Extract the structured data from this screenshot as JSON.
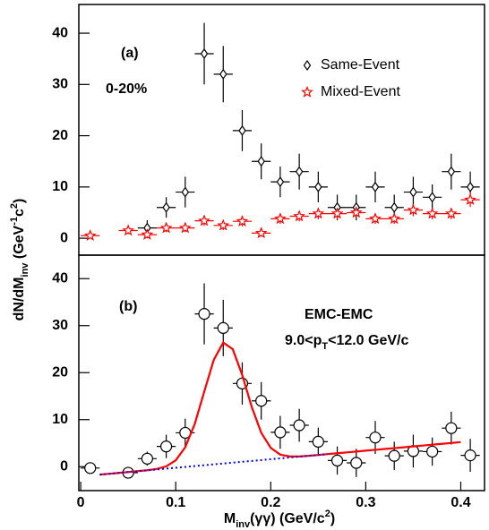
{
  "chart_data": [
    {
      "type": "scatter",
      "annotations": [
        "(a)",
        "0-20%"
      ],
      "xlim": [
        -0.002,
        0.425
      ],
      "ylim": [
        -3.3,
        45.6
      ],
      "yticks": [
        0,
        10,
        20,
        30,
        40
      ],
      "y_label": [
        "dN/dM",
        "inv",
        " (GeV",
        "-1",
        "c",
        "2",
        ")"
      ],
      "xerr": 0.01,
      "series": [
        {
          "name": "Same-Event",
          "color": "#000000",
          "marker": "diamond",
          "style": "points",
          "x": [
            0.07,
            0.09,
            0.11,
            0.13,
            0.15,
            0.17,
            0.19,
            0.21,
            0.23,
            0.25,
            0.27,
            0.29,
            0.31,
            0.33,
            0.35,
            0.37,
            0.39,
            0.41
          ],
          "values": [
            2,
            6,
            9,
            36,
            32,
            21,
            15,
            11,
            13,
            10,
            6,
            6,
            10,
            6,
            9,
            8,
            13,
            10
          ],
          "errors": [
            1.5,
            2,
            3,
            6,
            5.5,
            4,
            3.5,
            3,
            3.5,
            3,
            2.5,
            2.5,
            3,
            2.5,
            3,
            2.5,
            3.5,
            3
          ]
        },
        {
          "name": "Mixed-Event",
          "color": "#ff0000",
          "marker": "star",
          "style": "points",
          "x": [
            0.01,
            0.05,
            0.07,
            0.09,
            0.11,
            0.13,
            0.15,
            0.17,
            0.19,
            0.21,
            0.23,
            0.25,
            0.27,
            0.29,
            0.31,
            0.33,
            0.35,
            0.37,
            0.39,
            0.41
          ],
          "values": [
            0.5,
            1.5,
            0.7,
            2,
            2,
            3.4,
            2.5,
            3.3,
            1,
            3.8,
            4.3,
            4.8,
            4.8,
            5,
            3.8,
            3.8,
            5.5,
            4.8,
            4.8,
            7.5
          ],
          "errors": [
            0.5,
            0.7,
            0.7,
            0.8,
            0.8,
            1,
            0.9,
            1,
            0.7,
            1,
            1,
            1.1,
            1.1,
            1.1,
            1,
            1,
            1.2,
            1.1,
            1.1,
            1.4
          ]
        }
      ]
    },
    {
      "type": "scatter",
      "annotations": [
        "(b)",
        "EMC-EMC",
        [
          "9.0<p",
          "T",
          "<12.0 GeV/c"
        ]
      ],
      "xlim": [
        -0.002,
        0.425
      ],
      "xticks": [
        0,
        0.1,
        0.2,
        0.3,
        0.4
      ],
      "ylim": [
        -5.1,
        45
      ],
      "yticks": [
        0,
        10,
        20,
        30,
        40
      ],
      "x_label": [
        "M",
        "inv",
        "(γγ) (GeV/c",
        "2",
        ")"
      ],
      "xerr": 0.01,
      "series": [
        {
          "color": "#000000",
          "marker": "circle",
          "style": "points",
          "x": [
            0.01,
            0.05,
            0.07,
            0.09,
            0.11,
            0.13,
            0.15,
            0.17,
            0.19,
            0.21,
            0.23,
            0.25,
            0.27,
            0.29,
            0.31,
            0.33,
            0.35,
            0.37,
            0.39,
            0.41
          ],
          "values": [
            -0.3,
            -1.3,
            1.7,
            4.3,
            7.2,
            32.5,
            29.5,
            17.7,
            14,
            7.3,
            8.8,
            5.3,
            1.3,
            0.8,
            6.2,
            2.3,
            3.3,
            3.2,
            8.2,
            2.4
          ],
          "errors": [
            0.8,
            0.8,
            1.5,
            2.5,
            3,
            6.5,
            6,
            4.5,
            4,
            3.5,
            3.5,
            3,
            3,
            3,
            3.5,
            3,
            3.5,
            3,
            3.5,
            3.5
          ]
        },
        {
          "color": "#ff0000",
          "style": "solid",
          "x": [
            0.02,
            0.03,
            0.04,
            0.05,
            0.06,
            0.07,
            0.08,
            0.09,
            0.1,
            0.11,
            0.12,
            0.13,
            0.14,
            0.15,
            0.16,
            0.17,
            0.18,
            0.19,
            0.2,
            0.21,
            0.22,
            0.23,
            0.24,
            0.25,
            0.26,
            0.27,
            0.28,
            0.29,
            0.3,
            0.31,
            0.32,
            0.33,
            0.34,
            0.35,
            0.36,
            0.37,
            0.38,
            0.39,
            0.4
          ],
          "values": [
            -1.7,
            -1.52,
            -1.34,
            -1.15,
            -0.96,
            -0.77,
            -0.49,
            0.06,
            1.34,
            4.12,
            9.07,
            15.95,
            22.7,
            26.4,
            25.0,
            19.5,
            12.7,
            7.2,
            4.0,
            2.56,
            2.16,
            2.17,
            2.3,
            2.49,
            2.67,
            2.85,
            3.03,
            3.21,
            3.4,
            3.58,
            3.76,
            3.94,
            4.12,
            4.31,
            4.49,
            4.67,
            4.85,
            5.03,
            5.22
          ]
        },
        {
          "color": "#0000ff",
          "style": "dotted",
          "x": [
            0.02,
            0.26
          ],
          "values": [
            -1.7,
            2.67
          ]
        }
      ]
    }
  ]
}
